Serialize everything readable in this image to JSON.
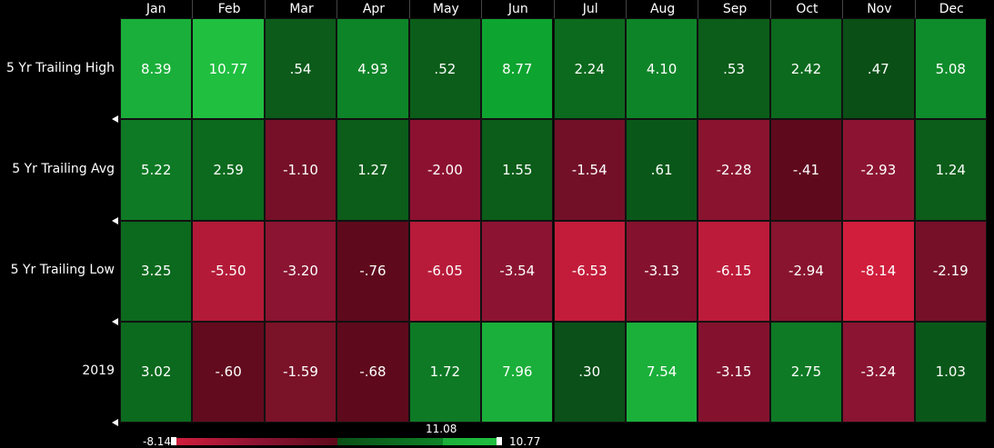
{
  "chart_data": {
    "type": "heatmap",
    "columns": [
      "Jan",
      "Feb",
      "Mar",
      "Apr",
      "May",
      "Jun",
      "Jul",
      "Aug",
      "Sep",
      "Oct",
      "Nov",
      "Dec"
    ],
    "rows": [
      "5 Yr Trailing High",
      "5 Yr Trailing Avg",
      "5 Yr Trailing Low",
      "2019"
    ],
    "cells": [
      [
        "8.39",
        "10.77",
        ".54",
        "4.93",
        ".52",
        "8.77",
        "2.24",
        "4.10",
        ".53",
        "2.42",
        ".47",
        "5.08"
      ],
      [
        "5.22",
        "2.59",
        "-1.10",
        "1.27",
        "-2.00",
        "1.55",
        "-1.54",
        ".61",
        "-2.28",
        "-.41",
        "-2.93",
        "1.24"
      ],
      [
        "3.25",
        "-5.50",
        "-3.20",
        "-.76",
        "-6.05",
        "-3.54",
        "-6.53",
        "-3.13",
        "-6.15",
        "-2.94",
        "-8.14",
        "-2.19"
      ],
      [
        "3.02",
        "-.60",
        "-1.59",
        "-.68",
        "1.72",
        "7.96",
        ".30",
        "7.54",
        "-3.15",
        "2.75",
        "-3.24",
        "1.03"
      ]
    ],
    "colors": [
      [
        "#1aaf3a",
        "#20bf40",
        "#0c5b1a",
        "#0e8428",
        "#0b5d19",
        "#0ea430",
        "#0b6a1d",
        "#0e8428",
        "#0b5d19",
        "#0b6a1d",
        "#0a4f16",
        "#0e8c2b"
      ],
      [
        "#0e7a25",
        "#0b6a1d",
        "#751028",
        "#0b5d19",
        "#8c1130",
        "#0b5d19",
        "#721028",
        "#0a5819",
        "#8a1430",
        "#5e0a1c",
        "#8c1432",
        "#0b5d19"
      ],
      [
        "#0b6a1d",
        "#b31a38",
        "#8a1432",
        "#5e0a1c",
        "#b81b3a",
        "#8c1432",
        "#c21c3a",
        "#84122e",
        "#bd1b3a",
        "#88142f",
        "#d01e3c",
        "#761028"
      ],
      [
        "#0b6a1d",
        "#620b1e",
        "#7a1228",
        "#5e0a1c",
        "#0e7a25",
        "#1aaf3a",
        "#0a5018",
        "#1ab03a",
        "#84122e",
        "#0e7a25",
        "#8a1432",
        "#0a5819"
      ]
    ],
    "legend": {
      "min_label": "-8.14",
      "max_label": "10.77",
      "range_label": "11.08",
      "gradient": [
        {
          "from": "#d01e3c",
          "to": "#b81b3a"
        },
        {
          "from": "#8c1432",
          "to": "#5e0a1c"
        },
        {
          "from": "#0a4f16",
          "to": "#0e8428"
        },
        {
          "from": "#1aaf3a",
          "to": "#20bf40"
        }
      ]
    }
  }
}
